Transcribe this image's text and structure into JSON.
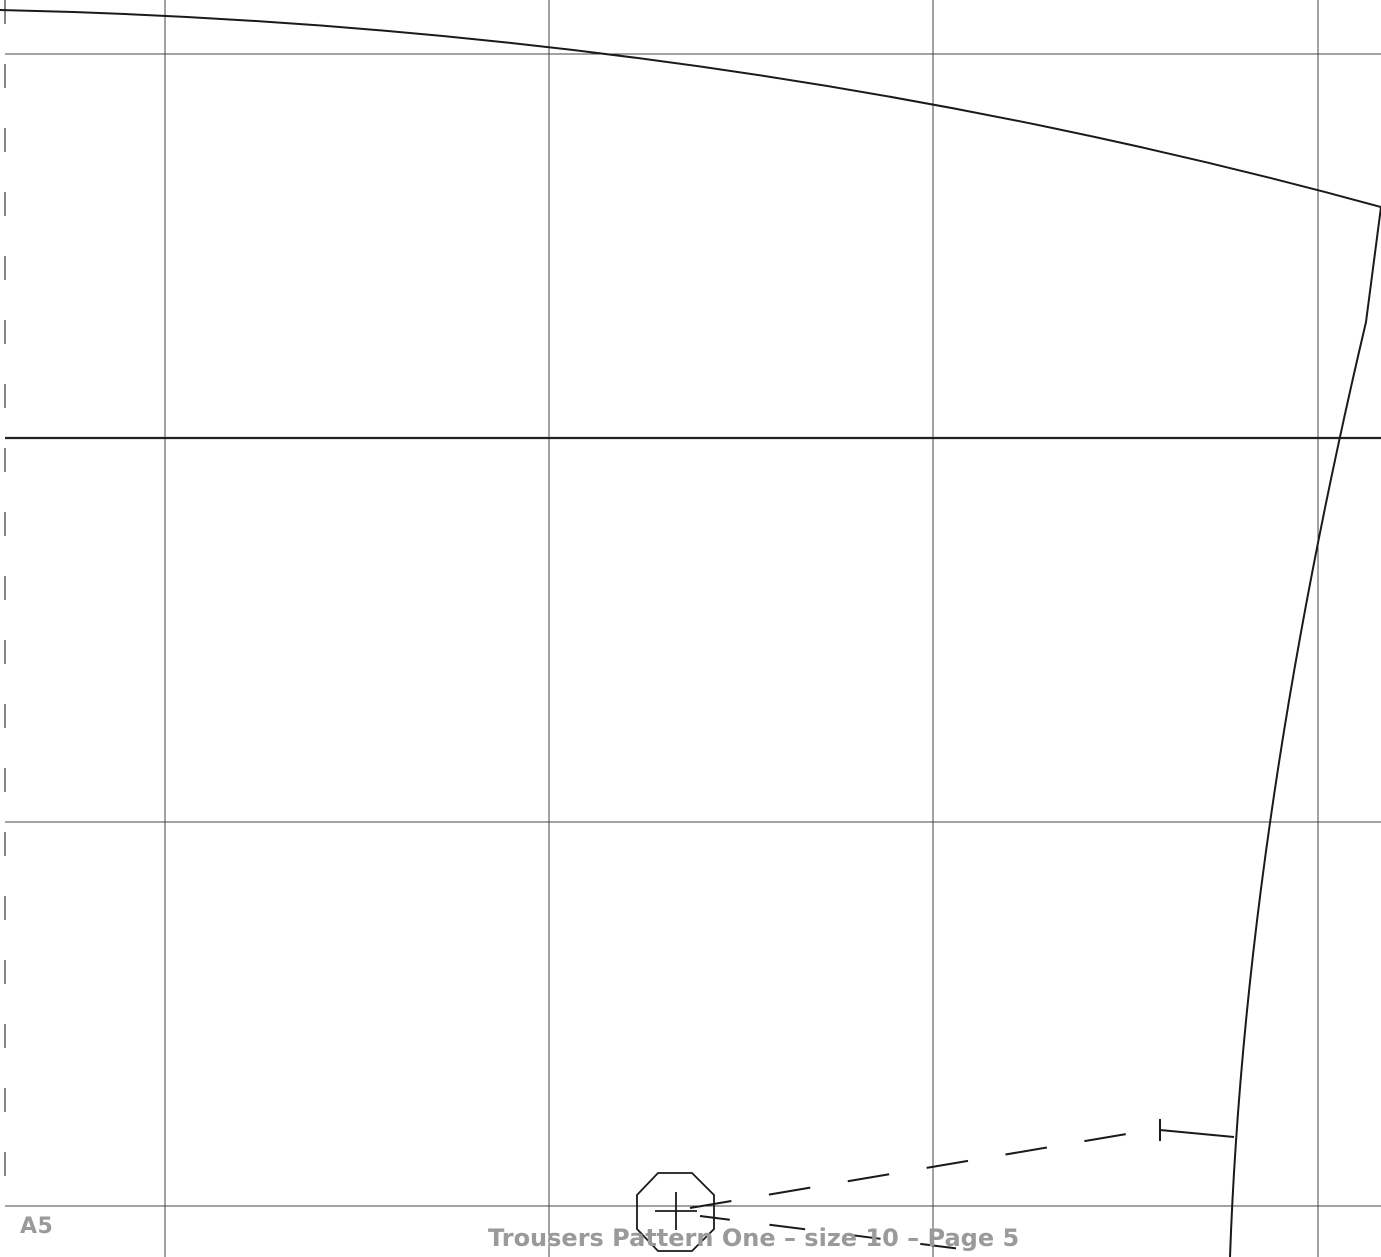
{
  "document": {
    "page_label": "A5",
    "footer_title": "Trousers Pattern One – size 10 – Page 5"
  },
  "colors": {
    "background": "#ffffff",
    "grid_line": "#444444",
    "pattern_line": "#1a1a1a",
    "footer_text": "#9a9a9a"
  },
  "icons": {
    "grainline_marker": "octagon-crosshair-icon"
  }
}
